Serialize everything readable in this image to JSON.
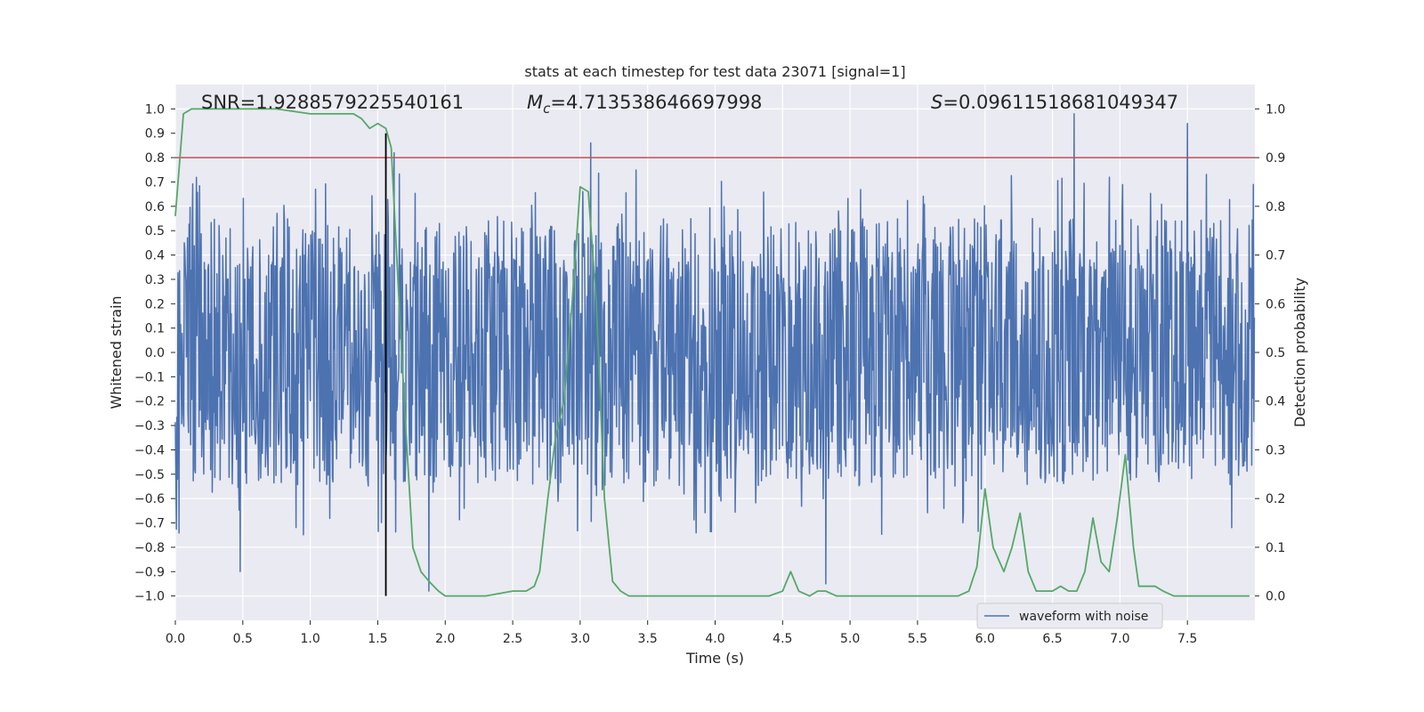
{
  "chart_data": {
    "type": "line",
    "title": "stats at each timestep for test data 23071 [signal=1]",
    "xlabel": "Time (s)",
    "ylabel_left": "Whitened strain",
    "ylabel_right": "Detection probability",
    "xlim": [
      0.0,
      8.0
    ],
    "ylim_left": [
      -1.1,
      1.1
    ],
    "ylim_right": [
      -0.05,
      1.05
    ],
    "x_ticks": [
      "0.0",
      "0.5",
      "1.0",
      "1.5",
      "2.0",
      "2.5",
      "3.0",
      "3.5",
      "4.0",
      "4.5",
      "5.0",
      "5.5",
      "6.0",
      "6.5",
      "7.0",
      "7.5"
    ],
    "y_left_ticks": [
      "1.0",
      "0.9",
      "0.8",
      "0.7",
      "0.6",
      "0.5",
      "0.4",
      "0.3",
      "0.2",
      "0.1",
      "0.0",
      "−0.1",
      "−0.2",
      "−0.3",
      "−0.4",
      "−0.5",
      "−0.6",
      "−0.7",
      "−0.8",
      "−0.9",
      "−1.0"
    ],
    "y_right_ticks": [
      "1.0",
      "0.9",
      "0.8",
      "0.7",
      "0.6",
      "0.5",
      "0.4",
      "0.3",
      "0.2",
      "0.1",
      "0.0"
    ],
    "grid": true,
    "annotations": {
      "snr": "SNR=1.9288579225540161",
      "mc_symbol": "M",
      "mc_sub": "c",
      "mc_value": "=4.713538646697998",
      "s_symbol": "S",
      "s_value": "=0.09611518681049347"
    },
    "legend": {
      "position": "lower-right",
      "entries": [
        "waveform with noise"
      ]
    },
    "threshold": {
      "axis": "right",
      "value": 0.9,
      "color": "#c44e52"
    },
    "marker_line": {
      "x": 1.56,
      "y_range": [
        -1.0,
        0.9
      ],
      "color": "#000000"
    },
    "colors": {
      "waveform": "#4c72b0",
      "probability": "#55a868",
      "background": "#eaeaf2"
    },
    "series": [
      {
        "name": "waveform with noise",
        "axis": "left",
        "kind": "noise",
        "sample_rate": 256,
        "duration": 8.0,
        "core_amplitude": 0.38,
        "typical_peak": [
          0.45,
          0.7
        ],
        "max_peak": 0.98,
        "notable_peaks": [
          [
            0.48,
            0.8
          ],
          [
            1.62,
            0.82
          ],
          [
            3.08,
            0.86
          ],
          [
            6.66,
            0.98
          ],
          [
            7.5,
            0.94
          ],
          [
            1.88,
            -0.98
          ],
          [
            0.48,
            -0.9
          ],
          [
            4.82,
            -0.95
          ]
        ]
      },
      {
        "name": "",
        "axis": "right",
        "kind": "line",
        "x": [
          0.0,
          0.06,
          0.12,
          0.25,
          0.5,
          0.75,
          1.0,
          1.1,
          1.2,
          1.3,
          1.32,
          1.38,
          1.44,
          1.5,
          1.56,
          1.6,
          1.64,
          1.7,
          1.76,
          1.82,
          1.88,
          1.95,
          2.0,
          2.1,
          2.3,
          2.5,
          2.6,
          2.66,
          2.7,
          2.76,
          2.82,
          2.88,
          2.94,
          3.0,
          3.06,
          3.12,
          3.18,
          3.24,
          3.3,
          3.36,
          3.42,
          3.5,
          3.7,
          4.0,
          4.2,
          4.4,
          4.5,
          4.56,
          4.62,
          4.7,
          4.76,
          4.82,
          4.9,
          5.0,
          5.3,
          5.6,
          5.8,
          5.88,
          5.94,
          6.0,
          6.06,
          6.14,
          6.2,
          6.26,
          6.32,
          6.38,
          6.44,
          6.5,
          6.56,
          6.62,
          6.68,
          6.74,
          6.8,
          6.86,
          6.92,
          6.98,
          7.04,
          7.1,
          7.14,
          7.2,
          7.26,
          7.32,
          7.4,
          7.6,
          7.8,
          7.96
        ],
        "y": [
          0.78,
          0.99,
          1.0,
          1.0,
          1.0,
          1.0,
          0.99,
          0.99,
          0.99,
          0.99,
          0.99,
          0.98,
          0.96,
          0.97,
          0.96,
          0.92,
          0.7,
          0.38,
          0.1,
          0.05,
          0.03,
          0.01,
          0.0,
          0.0,
          0.0,
          0.01,
          0.01,
          0.02,
          0.05,
          0.2,
          0.33,
          0.4,
          0.6,
          0.84,
          0.83,
          0.6,
          0.2,
          0.03,
          0.01,
          0.0,
          0.0,
          0.0,
          0.0,
          0.0,
          0.0,
          0.0,
          0.01,
          0.05,
          0.01,
          0.0,
          0.01,
          0.01,
          0.0,
          0.0,
          0.0,
          0.0,
          0.0,
          0.01,
          0.06,
          0.22,
          0.1,
          0.05,
          0.1,
          0.17,
          0.05,
          0.01,
          0.01,
          0.01,
          0.02,
          0.01,
          0.01,
          0.05,
          0.16,
          0.07,
          0.05,
          0.16,
          0.29,
          0.1,
          0.02,
          0.02,
          0.02,
          0.01,
          0.0,
          0.0,
          0.0,
          0.0
        ]
      }
    ]
  }
}
